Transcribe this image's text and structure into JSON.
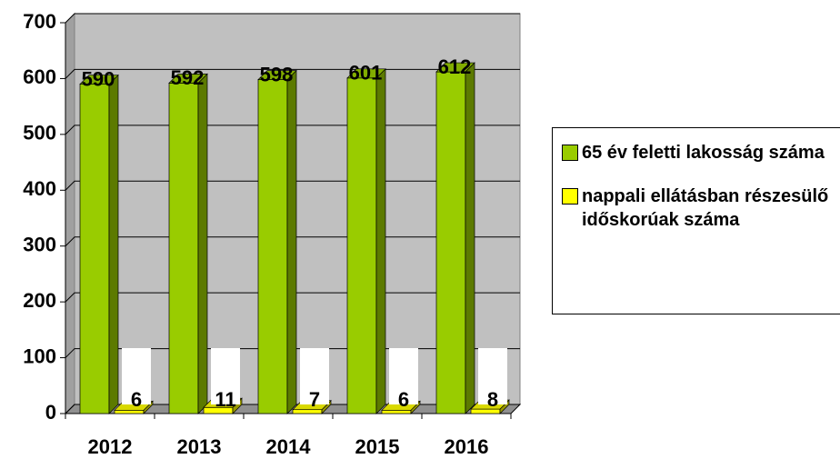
{
  "chart_data": {
    "type": "bar3d",
    "categories": [
      "2012",
      "2013",
      "2014",
      "2015",
      "2016"
    ],
    "series": [
      {
        "name": "65 év feletti lakosság száma",
        "color": "#99cc00",
        "values": [
          590,
          592,
          598,
          601,
          612
        ]
      },
      {
        "name": "nappali ellátásban részesülő időskorúak száma",
        "color": "#ffff00",
        "values": [
          6,
          11,
          7,
          6,
          8
        ]
      }
    ],
    "ylim": [
      0,
      700
    ],
    "yticks": [
      0,
      100,
      200,
      300,
      400,
      500,
      600,
      700
    ],
    "grid": true,
    "legend": "right"
  }
}
